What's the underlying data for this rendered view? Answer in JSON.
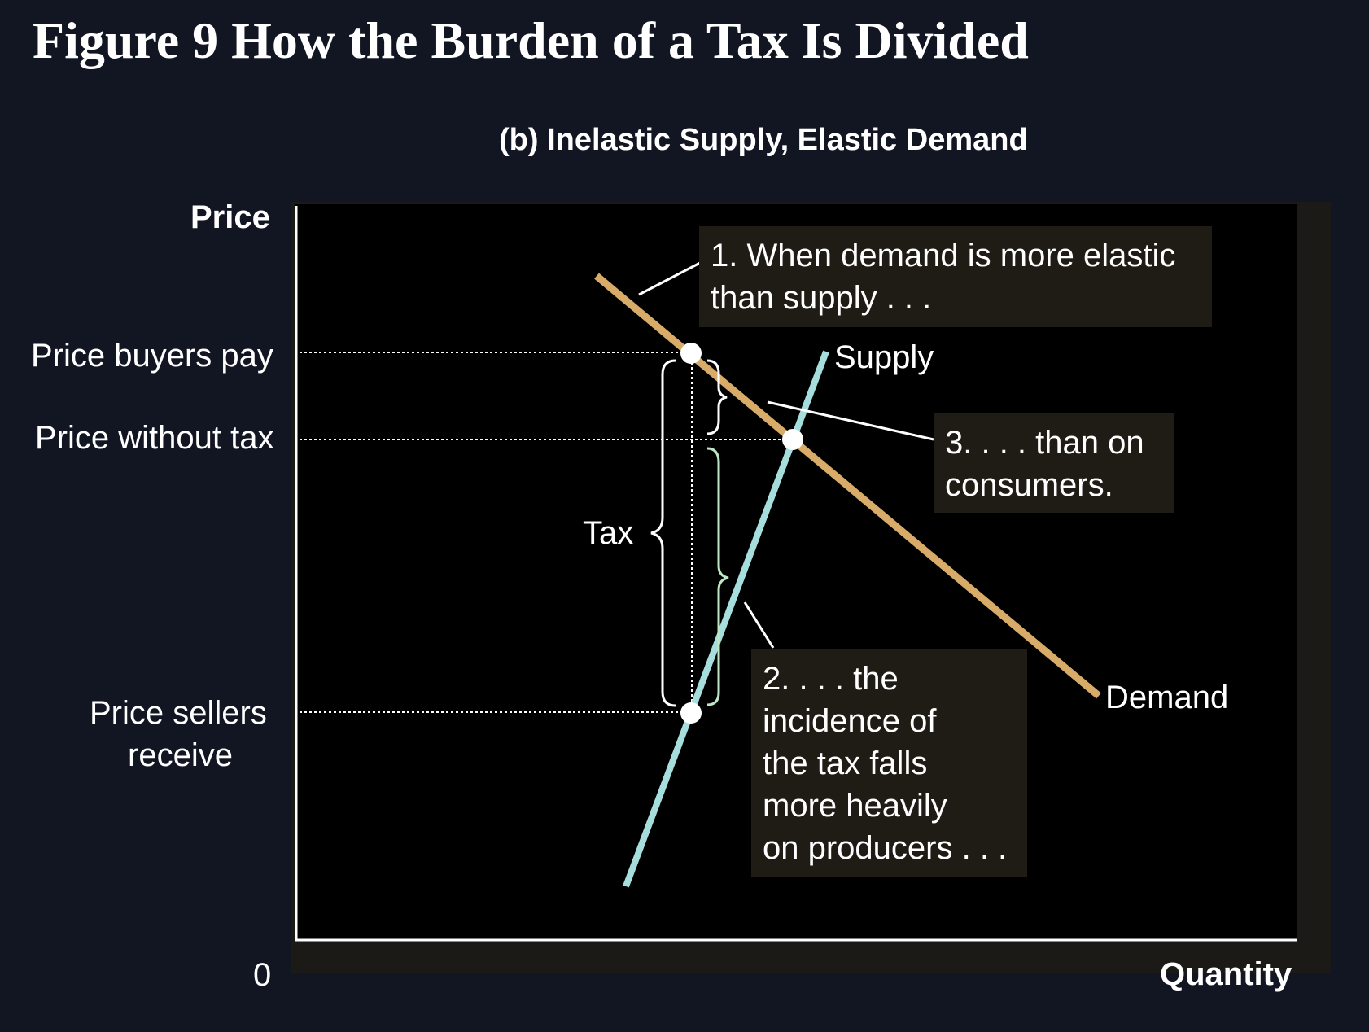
{
  "figure_title": "Figure 9 How the Burden of a Tax Is Divided",
  "panel_title": "(b) Inelastic Supply, Elastic Demand",
  "axes": {
    "y_title": "Price",
    "x_title": "Quantity",
    "origin": "0"
  },
  "price_levels": {
    "buyers_pay": "Price buyers pay",
    "without_tax": "Price without tax",
    "sellers_receive_line1": "Price sellers",
    "sellers_receive_line2": "receive"
  },
  "curves": {
    "supply": "Supply",
    "demand": "Demand"
  },
  "tax_label": "Tax",
  "notes": {
    "note1_line1": "1. When demand is more elastic",
    "note1_line2": "than supply . . .",
    "note2_line1": "2. . . . the",
    "note2_line2": "incidence of",
    "note2_line3": "the tax falls",
    "note2_line4": "more heavily",
    "note2_line5": "on producers . . .",
    "note3_line1": "3. . . . than on",
    "note3_line2": "consumers."
  },
  "colors": {
    "background": "#121522",
    "plot": "#000000",
    "demand": "#d8ac68",
    "supply": "#a6dede",
    "producer_brace": "#bfe6c6",
    "note_box": "#1f1c16"
  }
}
